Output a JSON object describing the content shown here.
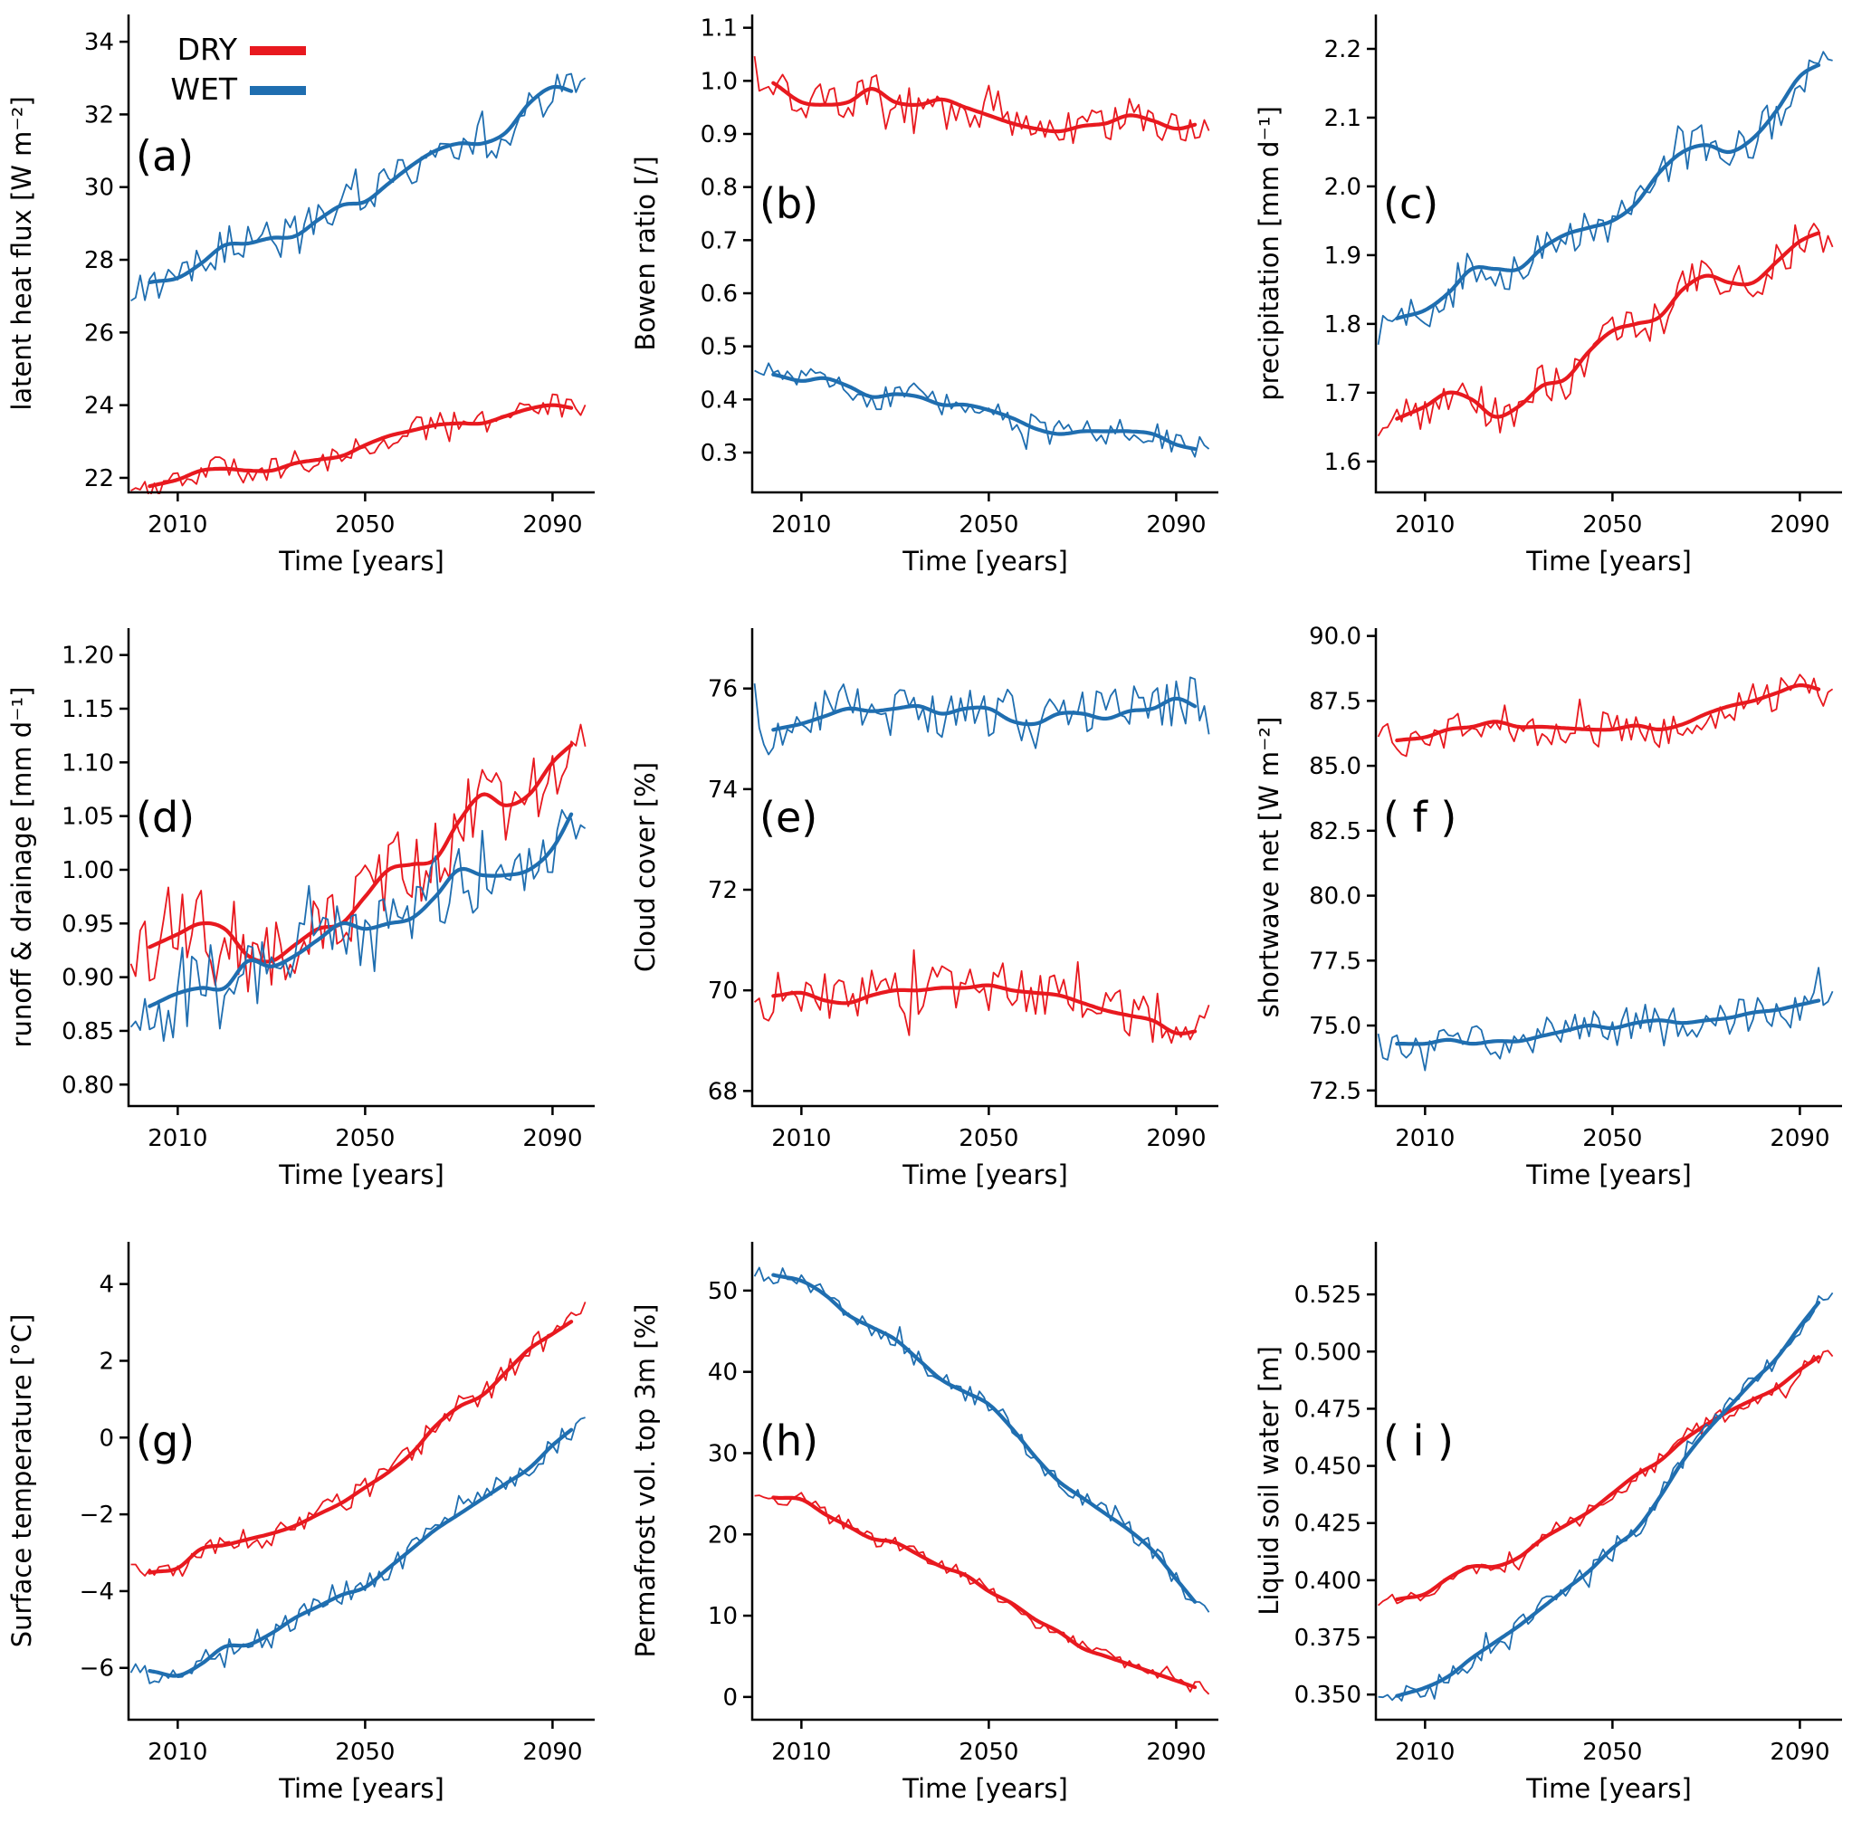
{
  "figure": {
    "background": "#ffffff",
    "colors": {
      "dry": "#e8191f",
      "wet": "#1f6eb0"
    },
    "legend": {
      "panel": "a",
      "items": [
        {
          "label": "DRY",
          "color_key": "dry"
        },
        {
          "label": "WET",
          "color_key": "wet"
        }
      ]
    }
  },
  "chart_data": {
    "type": "line",
    "layout": {
      "rows": 3,
      "cols": 3,
      "grid": false,
      "legend_position": "upper-left of panel (a)"
    },
    "xlabel": "Time [years]",
    "xticks": [
      2010,
      2050,
      2090
    ],
    "xtick_labels": [
      "2010",
      "2050",
      "2090"
    ],
    "xlim": [
      1999.5,
      2099
    ],
    "anchor_years": [
      2005,
      2010,
      2015,
      2020,
      2025,
      2030,
      2035,
      2040,
      2045,
      2050,
      2055,
      2060,
      2065,
      2070,
      2075,
      2080,
      2085,
      2090,
      2095
    ],
    "thin_span": [
      2000,
      2097
    ],
    "thick_span": [
      2004,
      2094
    ],
    "series_styles": {
      "thin": "annual values",
      "thick": "running mean"
    },
    "panels": [
      {
        "id": "a",
        "letter": "(a)",
        "ylabel": "latent heat flux [W m⁻²]",
        "ylim": [
          21.6,
          34.75
        ],
        "yticks": [
          22,
          24,
          26,
          28,
          30,
          32,
          34
        ],
        "ytick_labels": [
          "22",
          "24",
          "26",
          "28",
          "30",
          "32",
          "34"
        ],
        "series": [
          {
            "name": "DRY",
            "color_key": "dry",
            "noise": 0.35,
            "smooth": [
              21.8,
              21.95,
              22.2,
              22.25,
              22.2,
              22.2,
              22.4,
              22.5,
              22.6,
              22.9,
              23.15,
              23.3,
              23.45,
              23.5,
              23.5,
              23.7,
              23.9,
              24.0,
              23.9
            ]
          },
          {
            "name": "WET",
            "color_key": "wet",
            "noise": 0.55,
            "smooth": [
              27.4,
              27.5,
              27.9,
              28.4,
              28.45,
              28.6,
              28.65,
              29.1,
              29.5,
              29.6,
              30.1,
              30.6,
              31.0,
              31.2,
              31.2,
              31.5,
              32.3,
              32.75,
              32.6
            ]
          }
        ]
      },
      {
        "id": "b",
        "letter": "(b)",
        "ylabel": "Bowen ratio [/]",
        "ylim": [
          0.225,
          1.125
        ],
        "yticks": [
          0.3,
          0.4,
          0.5,
          0.6,
          0.7,
          0.8,
          0.9,
          1.0,
          1.1
        ],
        "ytick_labels": [
          "0.3",
          "0.4",
          "0.5",
          "0.6",
          "0.7",
          "0.8",
          "0.9",
          "1.0",
          "1.1"
        ],
        "series": [
          {
            "name": "DRY",
            "color_key": "dry",
            "noise": 0.035,
            "smooth": [
              0.99,
              0.96,
              0.955,
              0.96,
              0.985,
              0.96,
              0.955,
              0.965,
              0.95,
              0.935,
              0.92,
              0.91,
              0.905,
              0.915,
              0.92,
              0.935,
              0.925,
              0.91,
              0.92
            ]
          },
          {
            "name": "WET",
            "color_key": "wet",
            "noise": 0.025,
            "smooth": [
              0.445,
              0.435,
              0.44,
              0.425,
              0.405,
              0.41,
              0.405,
              0.39,
              0.39,
              0.38,
              0.365,
              0.345,
              0.335,
              0.34,
              0.34,
              0.34,
              0.335,
              0.315,
              0.305
            ]
          }
        ]
      },
      {
        "id": "c",
        "letter": "(c)",
        "ylabel": "precipitation [mm d⁻¹]",
        "ylim": [
          1.555,
          2.25
        ],
        "yticks": [
          1.6,
          1.7,
          1.8,
          1.9,
          2.0,
          2.1,
          2.2
        ],
        "ytick_labels": [
          "1.6",
          "1.7",
          "1.8",
          "1.9",
          "2.0",
          "2.1",
          "2.2"
        ],
        "series": [
          {
            "name": "DRY",
            "color_key": "dry",
            "noise": 0.03,
            "smooth": [
              1.665,
              1.68,
              1.7,
              1.69,
              1.665,
              1.68,
              1.71,
              1.72,
              1.76,
              1.79,
              1.8,
              1.81,
              1.85,
              1.87,
              1.86,
              1.86,
              1.89,
              1.92,
              1.935
            ]
          },
          {
            "name": "WET",
            "color_key": "wet",
            "noise": 0.032,
            "smooth": [
              1.81,
              1.82,
              1.845,
              1.88,
              1.88,
              1.88,
              1.91,
              1.93,
              1.94,
              1.95,
              1.975,
              2.02,
              2.05,
              2.06,
              2.05,
              2.07,
              2.11,
              2.16,
              2.18
            ]
          }
        ]
      },
      {
        "id": "d",
        "letter": "(d)",
        "ylabel": "runoff & drainage [mm d⁻¹]",
        "ylim": [
          0.78,
          1.225
        ],
        "yticks": [
          0.8,
          0.85,
          0.9,
          0.95,
          1.0,
          1.05,
          1.1,
          1.15,
          1.2
        ],
        "ytick_labels": [
          "0.80",
          "0.85",
          "0.90",
          "0.95",
          "1.00",
          "1.05",
          "1.10",
          "1.15",
          "1.20"
        ],
        "series": [
          {
            "name": "DRY",
            "color_key": "dry",
            "noise": 0.035,
            "smooth": [
              0.93,
              0.94,
              0.95,
              0.945,
              0.92,
              0.915,
              0.93,
              0.945,
              0.95,
              0.975,
              1.0,
              1.005,
              1.01,
              1.045,
              1.07,
              1.06,
              1.07,
              1.1,
              1.12
            ]
          },
          {
            "name": "WET",
            "color_key": "wet",
            "noise": 0.042,
            "smooth": [
              0.875,
              0.885,
              0.89,
              0.89,
              0.915,
              0.91,
              0.92,
              0.935,
              0.95,
              0.945,
              0.95,
              0.955,
              0.975,
              1.0,
              0.995,
              0.995,
              1.0,
              1.02,
              1.06
            ]
          }
        ]
      },
      {
        "id": "e",
        "letter": "(e)",
        "ylabel": "Cloud cover [%]",
        "ylim": [
          67.7,
          77.2
        ],
        "yticks": [
          68,
          70,
          72,
          74,
          76
        ],
        "ytick_labels": [
          "68",
          "70",
          "72",
          "74",
          "76"
        ],
        "series": [
          {
            "name": "DRY",
            "color_key": "dry",
            "noise": 0.5,
            "smooth": [
              69.9,
              69.95,
              69.8,
              69.75,
              69.9,
              70.0,
              70.0,
              70.05,
              70.05,
              70.1,
              70.0,
              69.95,
              69.9,
              69.75,
              69.6,
              69.5,
              69.4,
              69.15,
              69.2
            ]
          },
          {
            "name": "WET",
            "color_key": "wet",
            "noise": 0.55,
            "smooth": [
              75.2,
              75.3,
              75.45,
              75.6,
              75.55,
              75.6,
              75.65,
              75.5,
              75.6,
              75.6,
              75.35,
              75.3,
              75.5,
              75.5,
              75.4,
              75.55,
              75.6,
              75.8,
              75.6
            ]
          }
        ]
      },
      {
        "id": "f",
        "letter": "( f )",
        "ylabel": "shortwave net [W m⁻²]",
        "ylim": [
          71.9,
          90.3
        ],
        "yticks": [
          72.5,
          75.0,
          77.5,
          80.0,
          82.5,
          85.0,
          87.5,
          90.0
        ],
        "ytick_labels": [
          "72.5",
          "75.0",
          "77.5",
          "80.0",
          "82.5",
          "85.0",
          "87.5",
          "90.0"
        ],
        "series": [
          {
            "name": "DRY",
            "color_key": "dry",
            "noise": 0.7,
            "smooth": [
              86.0,
              86.1,
              86.4,
              86.5,
              86.7,
              86.5,
              86.5,
              86.45,
              86.4,
              86.4,
              86.55,
              86.4,
              86.6,
              87.0,
              87.3,
              87.5,
              87.8,
              88.1,
              87.9
            ]
          },
          {
            "name": "WET",
            "color_key": "wet",
            "noise": 0.7,
            "smooth": [
              74.3,
              74.3,
              74.45,
              74.3,
              74.4,
              74.4,
              74.6,
              74.8,
              75.0,
              74.9,
              75.1,
              75.2,
              75.1,
              75.2,
              75.3,
              75.5,
              75.6,
              75.8,
              76.0
            ]
          }
        ]
      },
      {
        "id": "g",
        "letter": "(g)",
        "ylabel": "Surface temperature [°C]",
        "ylim": [
          -7.35,
          5.1
        ],
        "yticks": [
          -6,
          -4,
          -2,
          0,
          2,
          4
        ],
        "ytick_labels": [
          "−6",
          "−4",
          "−2",
          "0",
          "2",
          "4"
        ],
        "series": [
          {
            "name": "DRY",
            "color_key": "dry",
            "noise": 0.32,
            "smooth": [
              -3.5,
              -3.4,
              -2.9,
              -2.8,
              -2.65,
              -2.5,
              -2.3,
              -2.0,
              -1.7,
              -1.3,
              -0.9,
              -0.4,
              0.3,
              0.8,
              1.1,
              1.7,
              2.3,
              2.7,
              3.1
            ]
          },
          {
            "name": "WET",
            "color_key": "wet",
            "noise": 0.32,
            "smooth": [
              -6.1,
              -6.2,
              -5.9,
              -5.45,
              -5.4,
              -5.1,
              -4.7,
              -4.4,
              -4.1,
              -3.9,
              -3.4,
              -2.9,
              -2.4,
              -2.0,
              -1.6,
              -1.2,
              -0.8,
              -0.2,
              0.3
            ]
          }
        ]
      },
      {
        "id": "h",
        "letter": "(h)",
        "ylabel": "Permafrost vol. top 3m [%]",
        "ylim": [
          -2.8,
          56
        ],
        "yticks": [
          0,
          10,
          20,
          30,
          40,
          50
        ],
        "ytick_labels": [
          "0",
          "10",
          "20",
          "30",
          "40",
          "50"
        ],
        "series": [
          {
            "name": "DRY",
            "color_key": "dry",
            "noise": 0.9,
            "smooth": [
              24.5,
              24.3,
              22.5,
              21.0,
              19.5,
              19.0,
              17.5,
              16.0,
              15.0,
              13.0,
              11.5,
              9.5,
              8.0,
              6.0,
              5.0,
              4.0,
              3.0,
              2.0,
              1.0
            ]
          },
          {
            "name": "WET",
            "color_key": "wet",
            "noise": 1.1,
            "smooth": [
              51.8,
              51.2,
              49.5,
              47.0,
              45.5,
              44.0,
              41.5,
              39.0,
              37.5,
              36.0,
              33.0,
              29.5,
              26.5,
              24.5,
              22.5,
              20.5,
              18.0,
              14.5,
              11.0
            ]
          }
        ]
      },
      {
        "id": "i",
        "letter": "( i )",
        "ylabel": "Liquid soil water [m]",
        "ylim": [
          0.339,
          0.548
        ],
        "yticks": [
          0.35,
          0.375,
          0.4,
          0.425,
          0.45,
          0.475,
          0.5,
          0.525
        ],
        "ytick_labels": [
          "0.350",
          "0.375",
          "0.400",
          "0.425",
          "0.450",
          "0.475",
          "0.500",
          "0.525"
        ],
        "series": [
          {
            "name": "DRY",
            "color_key": "dry",
            "noise": 0.004,
            "smooth": [
              0.392,
              0.394,
              0.401,
              0.406,
              0.406,
              0.41,
              0.418,
              0.424,
              0.43,
              0.438,
              0.446,
              0.452,
              0.461,
              0.468,
              0.474,
              0.479,
              0.484,
              0.492,
              0.499
            ]
          },
          {
            "name": "WET",
            "color_key": "wet",
            "noise": 0.004,
            "smooth": [
              0.35,
              0.353,
              0.358,
              0.366,
              0.373,
              0.38,
              0.388,
              0.396,
              0.404,
              0.414,
              0.422,
              0.436,
              0.452,
              0.465,
              0.476,
              0.487,
              0.497,
              0.511,
              0.524
            ]
          }
        ]
      }
    ]
  }
}
